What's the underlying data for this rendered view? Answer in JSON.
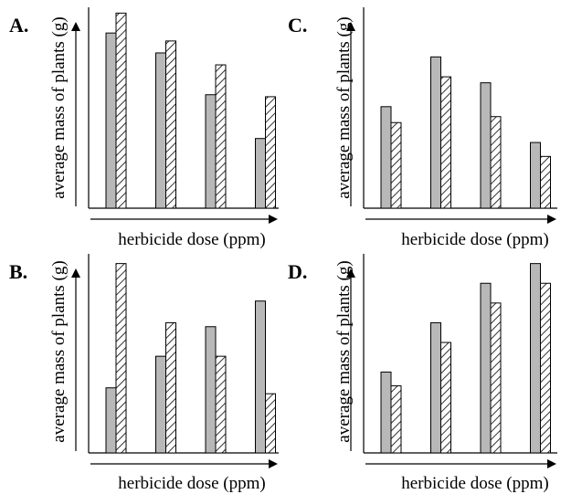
{
  "chart_data": [
    {
      "type": "bar",
      "panel_label": "A.",
      "xlabel": "herbicide dose (ppm)",
      "ylabel": "average mass of plants (g)",
      "categories": [
        "",
        "",
        "",
        ""
      ],
      "series": [
        {
          "pattern": "solid-gray",
          "values": [
            88,
            78,
            57,
            35
          ]
        },
        {
          "pattern": "hatched",
          "values": [
            98,
            84,
            72,
            56
          ]
        }
      ],
      "ylim": [
        0,
        100
      ],
      "grid": false
    },
    {
      "type": "bar",
      "panel_label": "B.",
      "xlabel": "herbicide dose (ppm)",
      "ylabel": "average mass of plants (g)",
      "categories": [
        "",
        "",
        "",
        ""
      ],
      "series": [
        {
          "pattern": "solid-gray",
          "values": [
            33,
            49,
            64,
            77
          ]
        },
        {
          "pattern": "hatched",
          "values": [
            96,
            66,
            49,
            30
          ]
        }
      ],
      "ylim": [
        0,
        100
      ],
      "grid": false
    },
    {
      "type": "bar",
      "panel_label": "C.",
      "xlabel": "herbicide dose (ppm)",
      "ylabel": "average mass of plants (g)",
      "categories": [
        "",
        "",
        "",
        ""
      ],
      "series": [
        {
          "pattern": "solid-gray",
          "values": [
            51,
            76,
            63,
            33
          ]
        },
        {
          "pattern": "hatched",
          "values": [
            43,
            66,
            46,
            26
          ]
        }
      ],
      "ylim": [
        0,
        100
      ],
      "grid": false
    },
    {
      "type": "bar",
      "panel_label": "D.",
      "xlabel": "herbicide dose (ppm)",
      "ylabel": "average mass of plants (g)",
      "categories": [
        "",
        "",
        "",
        ""
      ],
      "series": [
        {
          "pattern": "solid-gray",
          "values": [
            41,
            66,
            86,
            96
          ]
        },
        {
          "pattern": "hatched",
          "values": [
            34,
            56,
            76,
            86
          ]
        }
      ],
      "ylim": [
        0,
        100
      ],
      "grid": false
    }
  ],
  "colors": {
    "solid_bar": "#b8b8b8",
    "hatch_stroke": "#333333",
    "axis": "#000000"
  }
}
